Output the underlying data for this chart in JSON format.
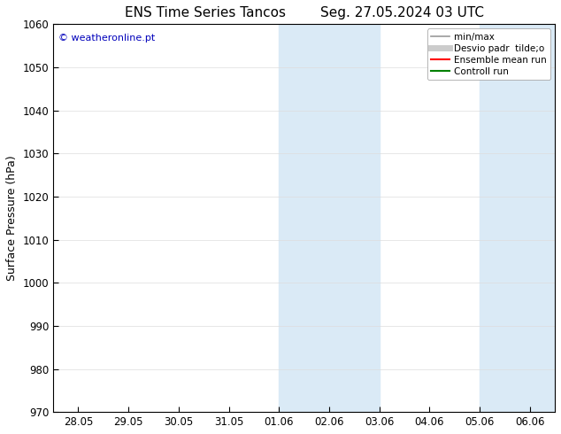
{
  "title_left": "ENS Time Series Tancos",
  "title_right": "Seg. 27.05.2024 03 UTC",
  "ylabel": "Surface Pressure (hPa)",
  "ylim": [
    970,
    1060
  ],
  "yticks": [
    970,
    980,
    990,
    1000,
    1010,
    1020,
    1030,
    1040,
    1050,
    1060
  ],
  "xtick_labels": [
    "28.05",
    "29.05",
    "30.05",
    "31.05",
    "01.06",
    "02.06",
    "03.06",
    "04.06",
    "05.06",
    "06.06"
  ],
  "xtick_positions": [
    0,
    1,
    2,
    3,
    4,
    5,
    6,
    7,
    8,
    9
  ],
  "xlim": [
    -0.5,
    9.5
  ],
  "shaded_bands": [
    {
      "x_start": 4,
      "x_end": 6
    },
    {
      "x_start": 8,
      "x_end": 9.5
    }
  ],
  "shaded_color": "#daeaf6",
  "background_color": "#ffffff",
  "plot_bg_color": "#ffffff",
  "watermark_text": "© weatheronline.pt",
  "watermark_color": "#0000bb",
  "legend_entries": [
    {
      "label": "min/max",
      "color": "#999999",
      "lw": 1.2,
      "style": "solid"
    },
    {
      "label": "Desvio padr  tilde;o",
      "color": "#cccccc",
      "lw": 5,
      "style": "solid"
    },
    {
      "label": "Ensemble mean run",
      "color": "#ff0000",
      "lw": 1.5,
      "style": "solid"
    },
    {
      "label": "Controll run",
      "color": "#008000",
      "lw": 1.5,
      "style": "solid"
    }
  ],
  "title_fontsize": 11,
  "axis_label_fontsize": 9,
  "tick_fontsize": 8.5,
  "watermark_fontsize": 8,
  "legend_fontsize": 7.5
}
